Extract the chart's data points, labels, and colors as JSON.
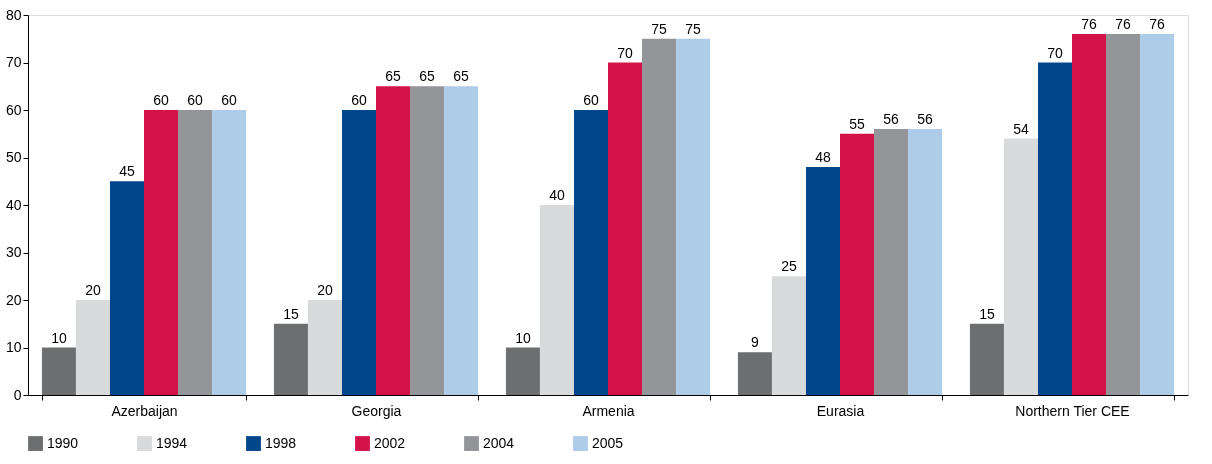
{
  "chart_data": {
    "type": "bar",
    "categories": [
      "Azerbaijan",
      "Georgia",
      "Armenia",
      "Eurasia",
      "Northern Tier CEE"
    ],
    "series": [
      {
        "name": "1990",
        "color": "#6d6e70",
        "values": [
          10,
          15,
          10,
          9,
          15
        ]
      },
      {
        "name": "1994",
        "color": "#d9dadb",
        "values": [
          20,
          20,
          40,
          25,
          54
        ]
      },
      {
        "name": "1998",
        "color": "#00468b",
        "values": [
          45,
          60,
          60,
          48,
          70
        ]
      },
      {
        "name": "2002",
        "color": "#d4124a",
        "values": [
          60,
          65,
          70,
          55,
          76
        ]
      },
      {
        "name": "2004",
        "color": "#939598",
        "values": [
          60,
          65,
          75,
          56,
          76
        ]
      },
      {
        "name": "2005",
        "color": "#aecbea",
        "values": [
          60,
          65,
          75,
          56,
          76
        ]
      }
    ],
    "ylim": [
      0,
      80
    ],
    "yticks": [
      0,
      10,
      20,
      30,
      40,
      50,
      60,
      70,
      80
    ],
    "grid": false,
    "legend": "bottom left",
    "data_labels": true
  }
}
